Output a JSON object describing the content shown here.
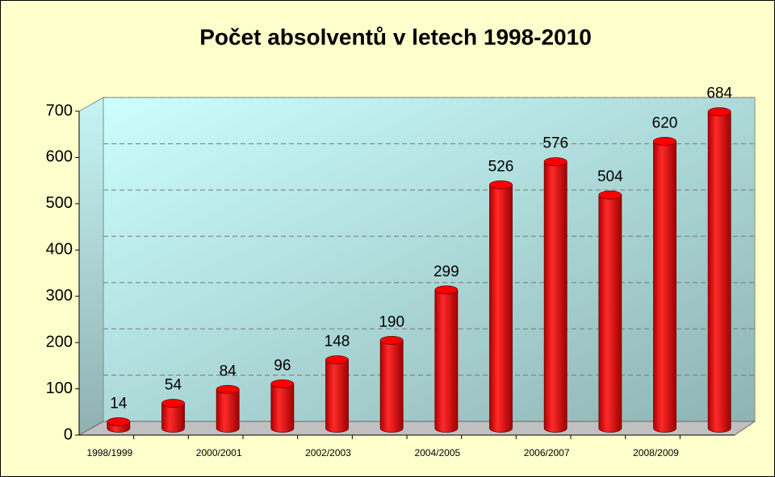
{
  "chart_data": {
    "type": "bar",
    "title": "Počet absolventů v letech 1998-2010",
    "categories": [
      "1998/1999",
      null,
      "2000/2001",
      null,
      "2002/2003",
      null,
      "2004/2005",
      null,
      "2006/2007",
      null,
      "2008/2009",
      null
    ],
    "values": [
      14,
      54,
      84,
      96,
      148,
      190,
      299,
      526,
      576,
      504,
      620,
      684
    ],
    "color": "#ff0000",
    "ylim": [
      0,
      700
    ],
    "yticks": [
      0,
      100,
      200,
      300,
      400,
      500,
      600,
      700
    ],
    "grid": true
  }
}
